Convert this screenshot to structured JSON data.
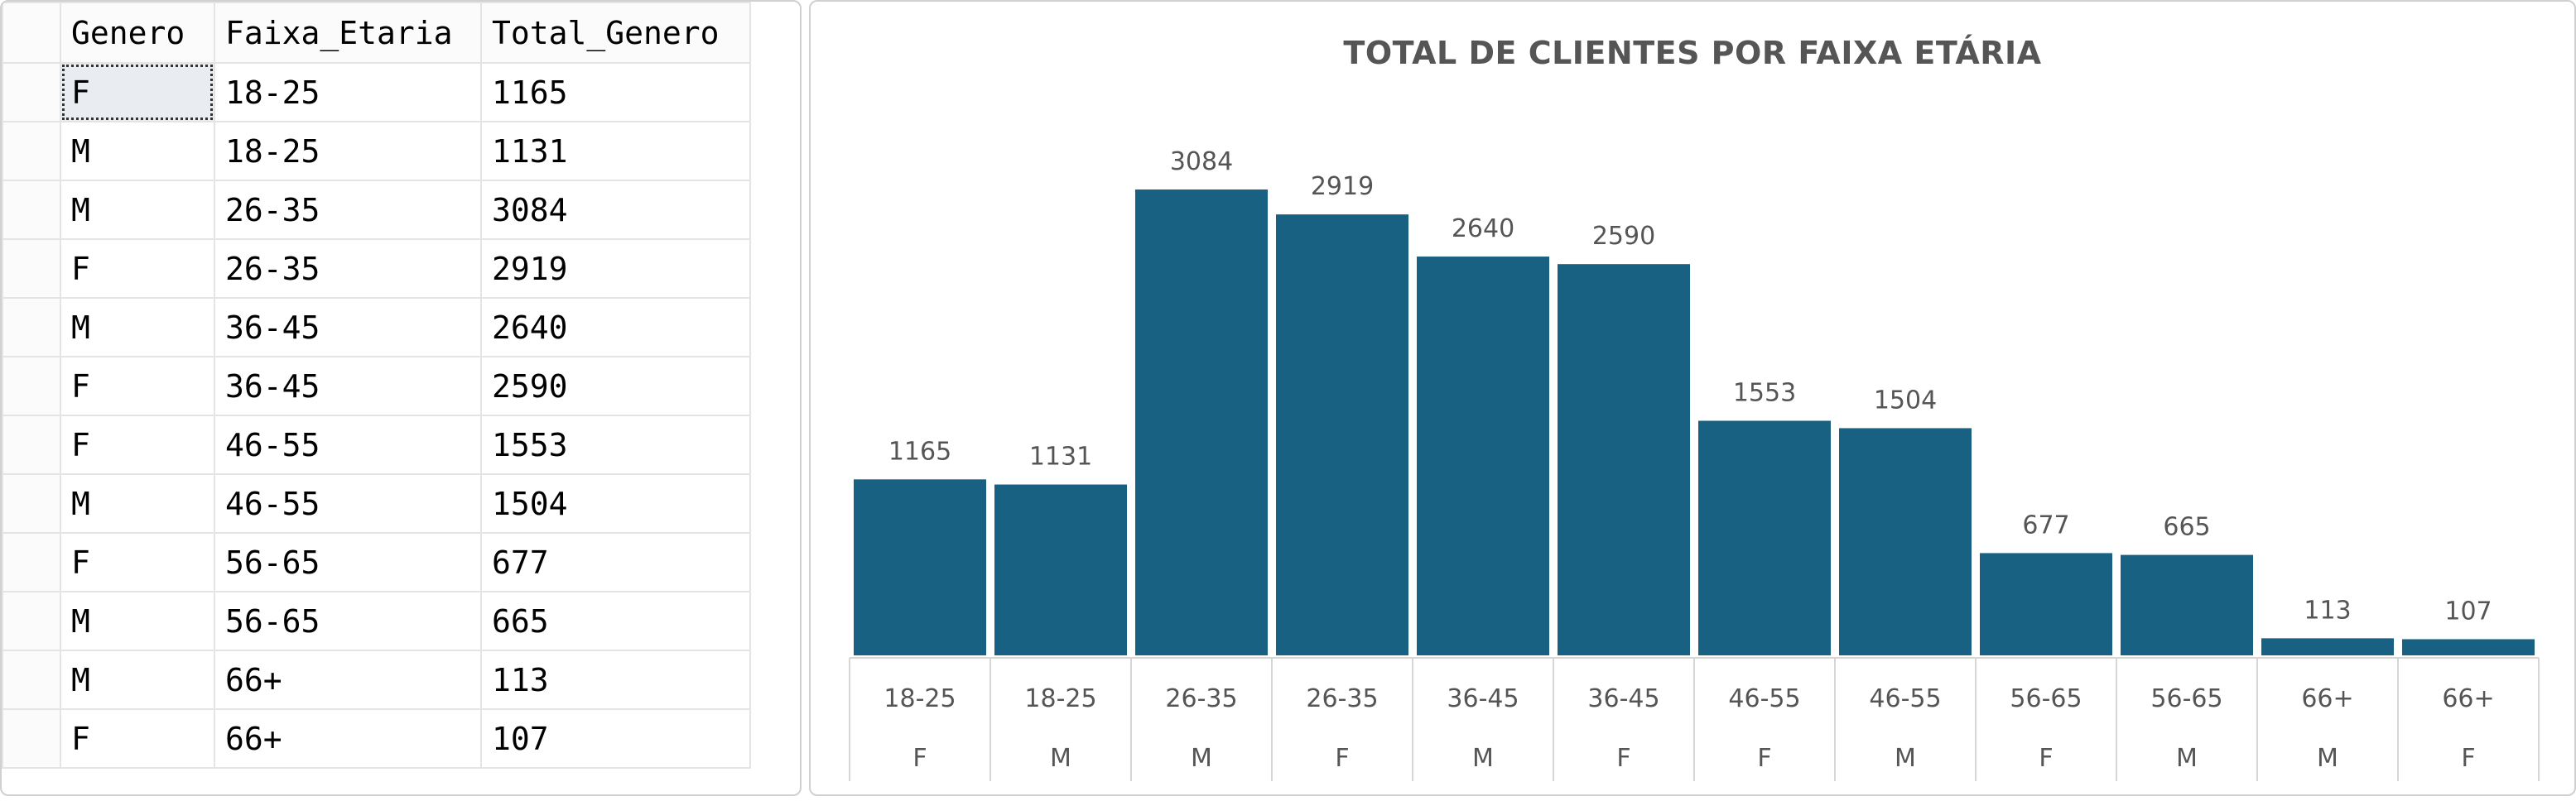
{
  "grid": {
    "columns": [
      "Genero",
      "Faixa_Etaria",
      "Total_Genero"
    ],
    "rows": [
      [
        "F",
        "18-25",
        "1165"
      ],
      [
        "M",
        "18-25",
        "1131"
      ],
      [
        "M",
        "26-35",
        "3084"
      ],
      [
        "F",
        "26-35",
        "2919"
      ],
      [
        "M",
        "36-45",
        "2640"
      ],
      [
        "F",
        "36-45",
        "2590"
      ],
      [
        "F",
        "46-55",
        "1553"
      ],
      [
        "M",
        "46-55",
        "1504"
      ],
      [
        "F",
        "56-65",
        "677"
      ],
      [
        "M",
        "56-65",
        "665"
      ],
      [
        "M",
        "66+",
        "113"
      ],
      [
        "F",
        "66+",
        "107"
      ]
    ]
  },
  "chart_data": {
    "type": "bar",
    "title": "TOTAL DE CLIENTES POR FAIXA ETÁRIA",
    "categories": [
      [
        "18-25",
        "F"
      ],
      [
        "18-25",
        "M"
      ],
      [
        "26-35",
        "M"
      ],
      [
        "26-35",
        "F"
      ],
      [
        "36-45",
        "M"
      ],
      [
        "36-45",
        "F"
      ],
      [
        "46-55",
        "F"
      ],
      [
        "46-55",
        "M"
      ],
      [
        "56-65",
        "F"
      ],
      [
        "56-65",
        "M"
      ],
      [
        "66+",
        "M"
      ],
      [
        "66+",
        "F"
      ]
    ],
    "values": [
      1165,
      1131,
      3084,
      2919,
      2640,
      2590,
      1553,
      1504,
      677,
      665,
      113,
      107
    ],
    "xlabel": "",
    "ylabel": "",
    "ylim": [
      0,
      3084
    ],
    "grid": false,
    "legend": "none",
    "bar_color": "#186182"
  }
}
